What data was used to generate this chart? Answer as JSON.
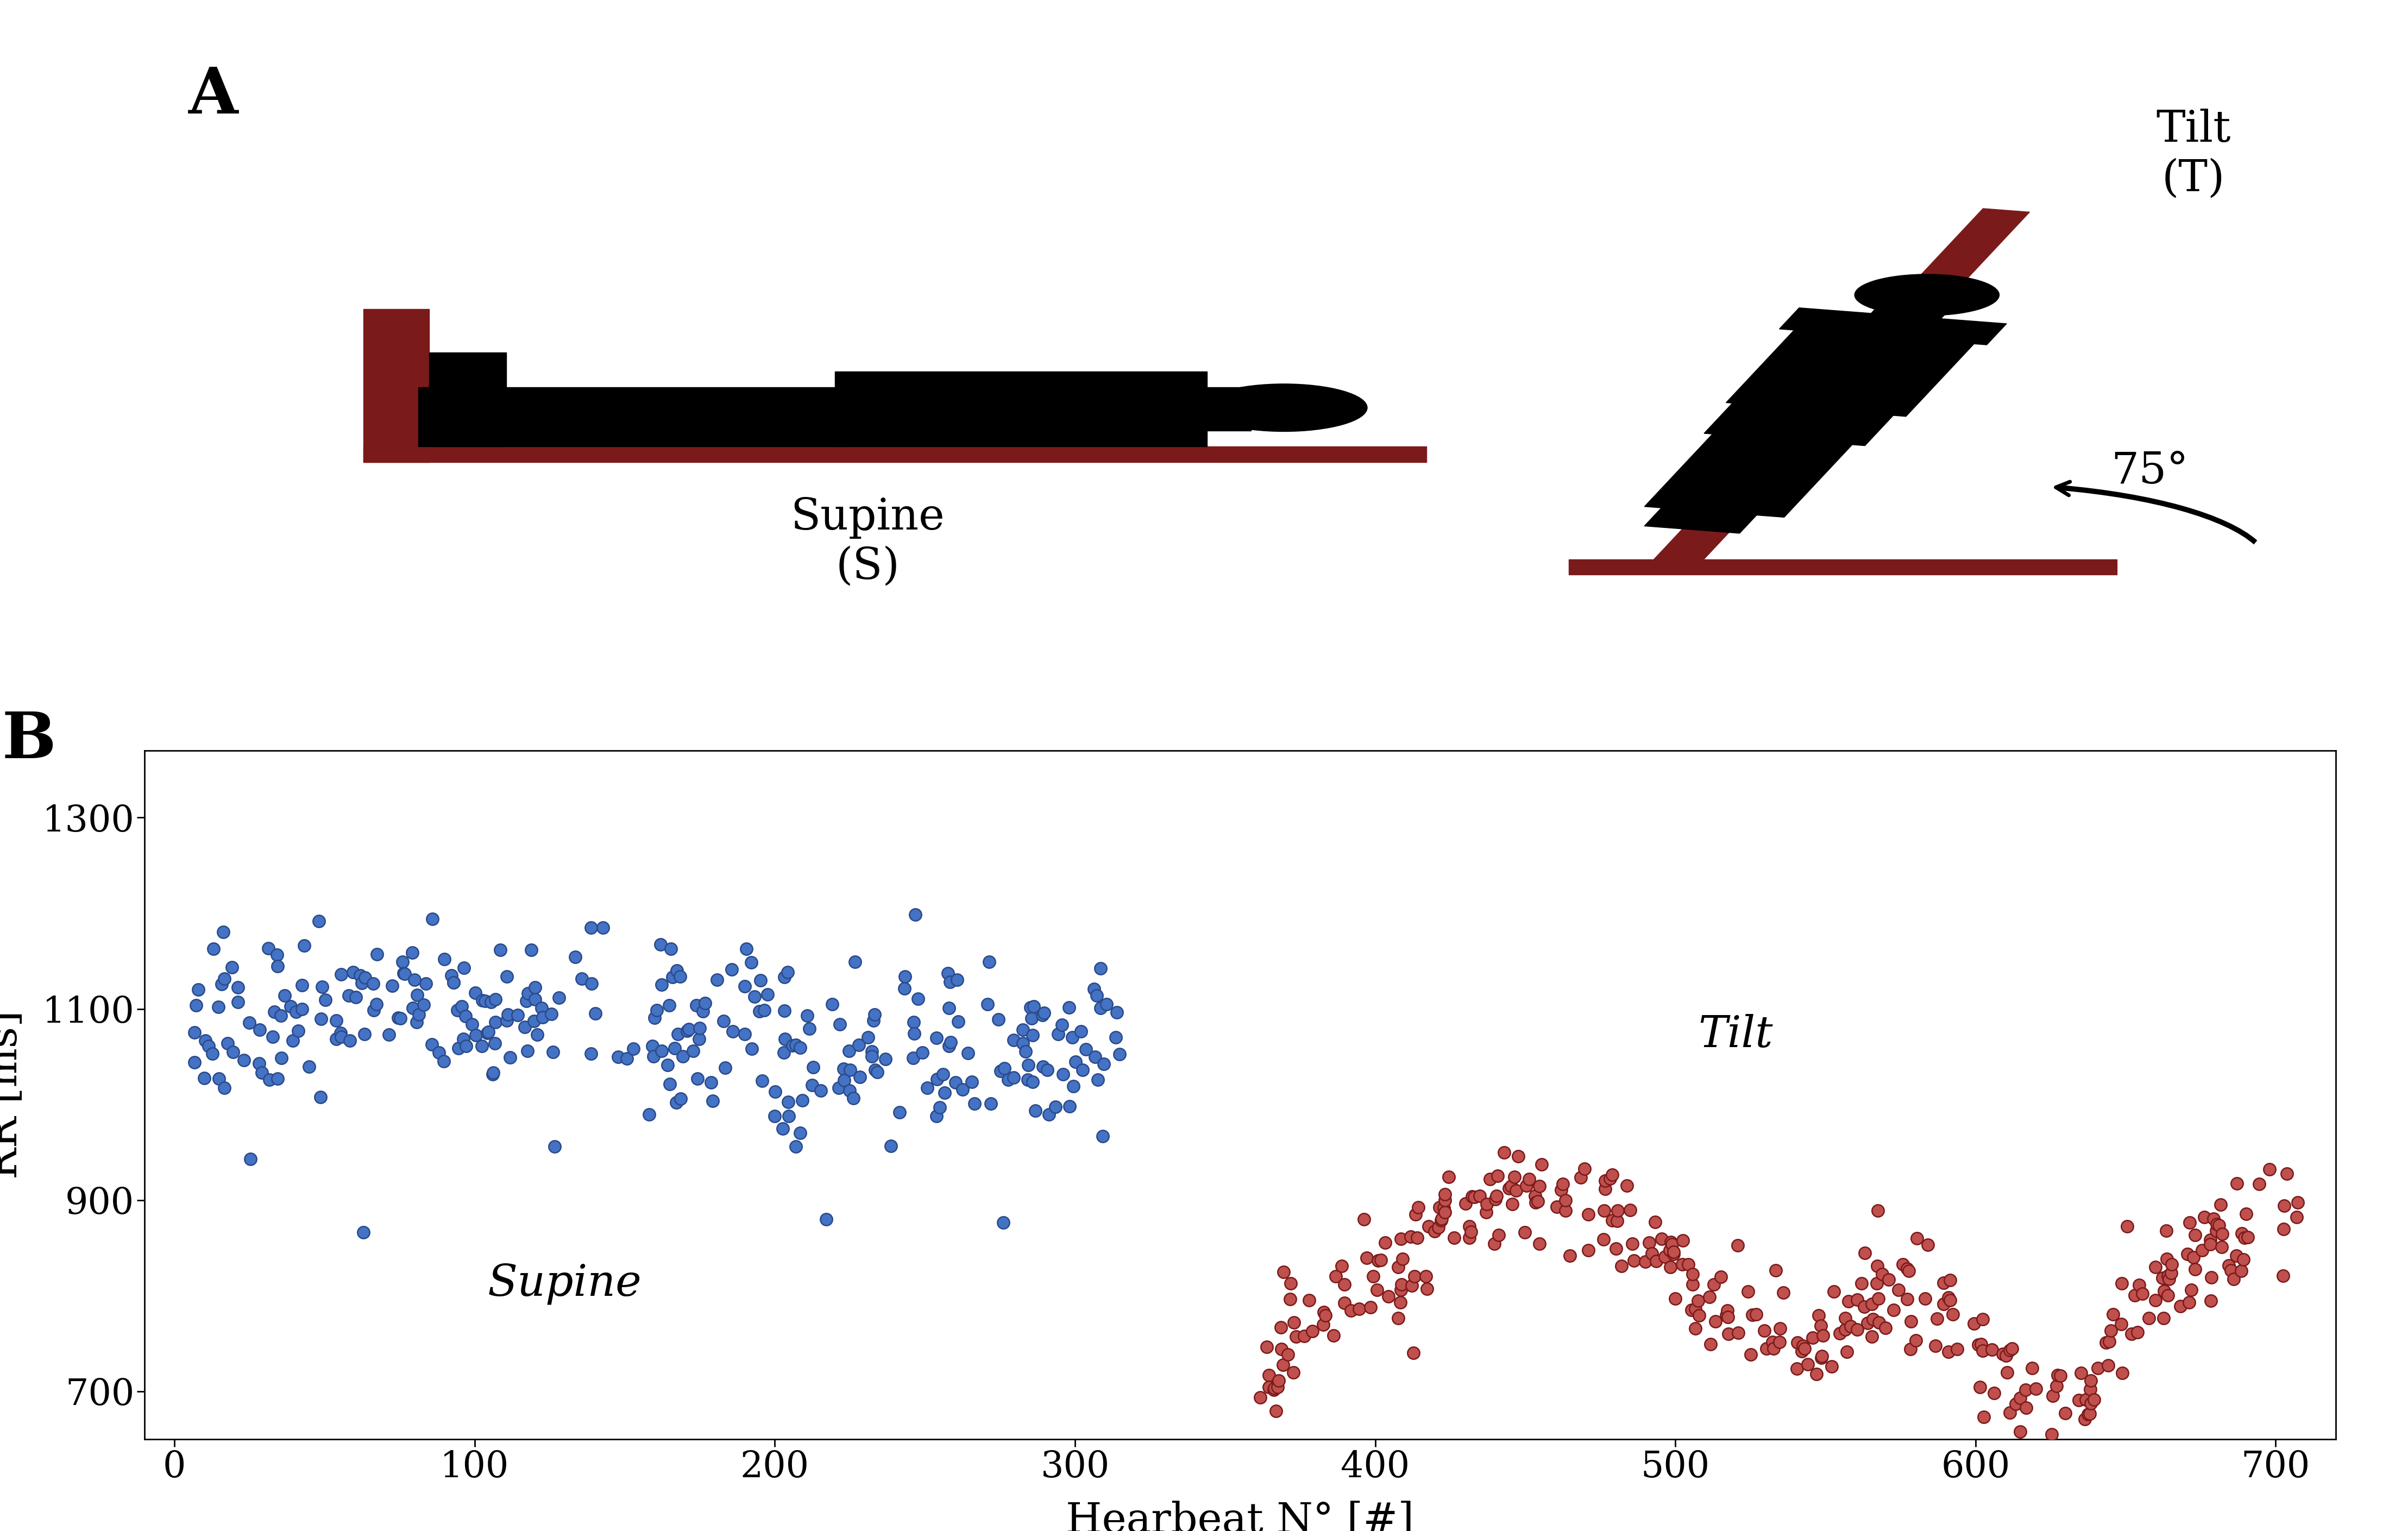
{
  "title_A": "A",
  "title_B": "B",
  "supine_label": "Supine\n(S)",
  "tilt_label": "Tilt\n(T)",
  "angle_label": "75°",
  "scatter_label_supine": "Supine",
  "scatter_label_tilt": "Tilt",
  "xlabel": "Hearbeat N° [#]",
  "ylabel": "RR [ms]",
  "ylim": [
    650,
    1370
  ],
  "xlim": [
    -10,
    720
  ],
  "yticks": [
    700,
    900,
    1100,
    1300
  ],
  "xticks": [
    0,
    100,
    200,
    300,
    400,
    500,
    600,
    700
  ],
  "supine_color": "#4472C4",
  "supine_edge": "#2a4a8a",
  "tilt_color": "#C0504D",
  "tilt_edge": "#7B1A1A",
  "board_color": "#7B1A1A",
  "body_color": "#000000",
  "background": "#FFFFFF",
  "seed": 42
}
